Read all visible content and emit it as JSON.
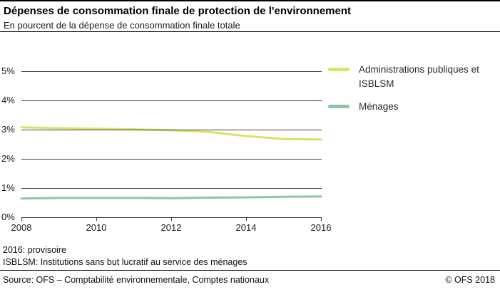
{
  "header": {
    "title": "Dépenses de consommation finale de protection de l'environnement",
    "subtitle": "En pourcent de la dépense de consommation finale totale"
  },
  "chart_data": {
    "type": "line",
    "x": [
      2008,
      2009,
      2010,
      2011,
      2012,
      2013,
      2014,
      2015,
      2016
    ],
    "series": [
      {
        "name": "Administrations publiques et ISBLSM",
        "color": "#dde164",
        "values": [
          3.08,
          3.05,
          3.03,
          3.01,
          2.98,
          2.92,
          2.78,
          2.68,
          2.66
        ]
      },
      {
        "name": "Ménages",
        "color": "#8cc7a2",
        "values": [
          0.64,
          0.66,
          0.66,
          0.66,
          0.65,
          0.67,
          0.68,
          0.7,
          0.71
        ]
      }
    ],
    "ylim": [
      0,
      5
    ],
    "yticks": [
      "5%",
      "4%",
      "3%",
      "2%",
      "1%",
      "0%"
    ],
    "xticks": [
      "2008",
      "2010",
      "2012",
      "2014",
      "2016"
    ],
    "grid": true,
    "legend_position": "right"
  },
  "footnotes": [
    "2016: provisoire",
    "ISBLSM: Institutions sans but lucratif au service des ménages"
  ],
  "footer": {
    "source": "Source: OFS – Comptabilité environnementale, Comptes nationaux",
    "copyright": "© OFS  2018"
  }
}
